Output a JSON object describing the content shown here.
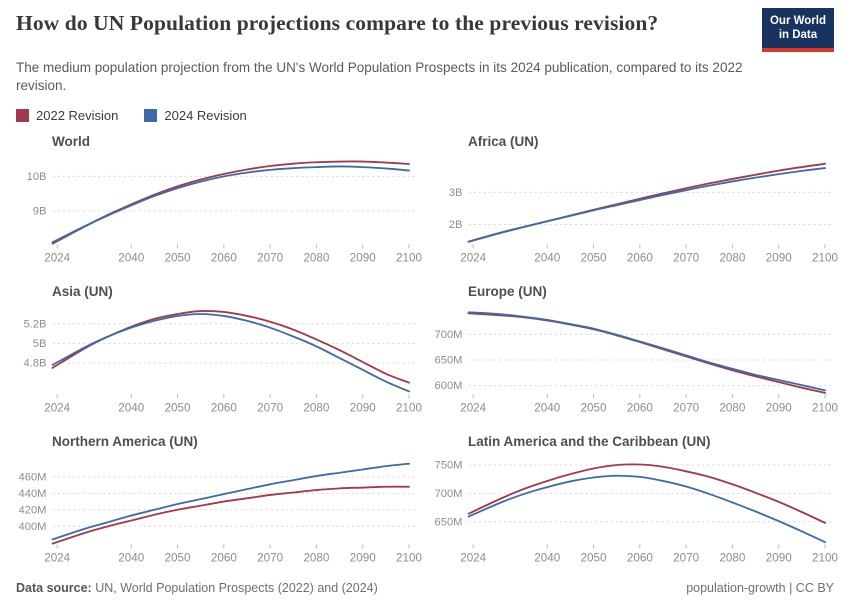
{
  "header": {
    "title": "How do UN Population projections compare to the previous revision?",
    "subtitle": "The medium population projection from the UN's World Population Prospects in its 2024 publication, compared to its 2022 revision.",
    "logo_line1": "Our World",
    "logo_line2": "in Data"
  },
  "legend": {
    "items": [
      {
        "label": "2022 Revision",
        "color": "#A2394C"
      },
      {
        "label": "2024 Revision",
        "color": "#3C6CA7"
      }
    ]
  },
  "footer": {
    "source_label": "Data source:",
    "source_text": "UN, World Population Prospects (2022) and (2024)",
    "slug": "population-growth",
    "divider": "|",
    "license": "CC BY"
  },
  "chart_data": [
    {
      "type": "line",
      "title": "World",
      "unit": "billion people",
      "x": [
        2023,
        2030,
        2035,
        2040,
        2045,
        2050,
        2055,
        2060,
        2065,
        2070,
        2075,
        2080,
        2085,
        2090,
        2095,
        2100
      ],
      "xlim": [
        2023,
        2101.5
      ],
      "xticks": [
        2024,
        2040,
        2050,
        2060,
        2070,
        2080,
        2090,
        2100
      ],
      "ylim": [
        8.03,
        10.56
      ],
      "yticks": [
        {
          "value": 9,
          "label": "9B"
        },
        {
          "value": 10,
          "label": "10B"
        }
      ],
      "series": [
        {
          "name": "2022 Revision",
          "values": [
            8.05,
            8.55,
            8.89,
            9.19,
            9.47,
            9.71,
            9.91,
            10.07,
            10.2,
            10.3,
            10.37,
            10.41,
            10.43,
            10.43,
            10.4,
            10.36
          ]
        },
        {
          "name": "2024 Revision",
          "values": [
            8.09,
            8.56,
            8.87,
            9.16,
            9.43,
            9.66,
            9.85,
            10.0,
            10.11,
            10.19,
            10.24,
            10.27,
            10.29,
            10.27,
            10.23,
            10.17
          ]
        }
      ]
    },
    {
      "type": "line",
      "title": "Africa (UN)",
      "unit": "billion people",
      "x": [
        2023,
        2030,
        2035,
        2040,
        2045,
        2050,
        2055,
        2060,
        2065,
        2070,
        2075,
        2080,
        2085,
        2090,
        2095,
        2100
      ],
      "xlim": [
        2023,
        2101.5
      ],
      "xticks": [
        2024,
        2040,
        2050,
        2060,
        2070,
        2080,
        2090,
        2100
      ],
      "ylim": [
        1.38,
        4.1
      ],
      "yticks": [
        {
          "value": 2,
          "label": "2B"
        },
        {
          "value": 3,
          "label": "3B"
        }
      ],
      "series": [
        {
          "name": "2022 Revision",
          "values": [
            1.46,
            1.74,
            1.92,
            2.1,
            2.28,
            2.46,
            2.63,
            2.8,
            2.97,
            3.13,
            3.28,
            3.42,
            3.55,
            3.68,
            3.79,
            3.89
          ]
        },
        {
          "name": "2024 Revision",
          "values": [
            1.47,
            1.75,
            1.93,
            2.1,
            2.27,
            2.44,
            2.6,
            2.76,
            2.92,
            3.07,
            3.21,
            3.34,
            3.46,
            3.57,
            3.67,
            3.76
          ]
        }
      ]
    },
    {
      "type": "line",
      "title": "Asia (UN)",
      "unit": "billion people",
      "x": [
        2023,
        2030,
        2035,
        2040,
        2045,
        2050,
        2055,
        2060,
        2065,
        2070,
        2075,
        2080,
        2085,
        2090,
        2095,
        2100
      ],
      "xlim": [
        2023,
        2101.5
      ],
      "xticks": [
        2024,
        2040,
        2050,
        2060,
        2070,
        2080,
        2090,
        2100
      ],
      "ylim": [
        4.48,
        5.37
      ],
      "yticks": [
        {
          "value": 4.8,
          "label": "4.8B"
        },
        {
          "value": 5.0,
          "label": "5B"
        },
        {
          "value": 5.2,
          "label": "5.2B"
        }
      ],
      "series": [
        {
          "name": "2022 Revision",
          "values": [
            4.75,
            4.95,
            5.07,
            5.17,
            5.25,
            5.3,
            5.33,
            5.32,
            5.28,
            5.22,
            5.14,
            5.04,
            4.93,
            4.81,
            4.69,
            4.6
          ]
        },
        {
          "name": "2024 Revision",
          "values": [
            4.78,
            4.96,
            5.07,
            5.16,
            5.23,
            5.28,
            5.3,
            5.28,
            5.23,
            5.16,
            5.07,
            4.97,
            4.85,
            4.73,
            4.61,
            4.51
          ]
        }
      ]
    },
    {
      "type": "line",
      "title": "Europe (UN)",
      "unit": "million people",
      "x": [
        2023,
        2030,
        2035,
        2040,
        2045,
        2050,
        2055,
        2060,
        2065,
        2070,
        2075,
        2080,
        2085,
        2090,
        2095,
        2100
      ],
      "xlim": [
        2023,
        2101.5
      ],
      "xticks": [
        2024,
        2040,
        2050,
        2060,
        2070,
        2080,
        2090,
        2100
      ],
      "ylim": [
        583,
        753
      ],
      "yticks": [
        {
          "value": 600,
          "label": "600M"
        },
        {
          "value": 650,
          "label": "650M"
        },
        {
          "value": 700,
          "label": "700M"
        }
      ],
      "series": [
        {
          "name": "2022 Revision",
          "values": [
            741,
            737,
            733,
            727,
            719,
            710,
            698,
            685,
            671,
            657,
            643,
            630,
            618,
            607,
            596,
            586
          ]
        },
        {
          "name": "2024 Revision",
          "values": [
            743,
            739,
            734,
            728,
            720,
            711,
            699,
            686,
            673,
            659,
            645,
            633,
            621,
            611,
            601,
            591
          ]
        }
      ]
    },
    {
      "type": "line",
      "title": "Northern America (UN)",
      "unit": "million people",
      "x": [
        2023,
        2030,
        2035,
        2040,
        2045,
        2050,
        2055,
        2060,
        2065,
        2070,
        2075,
        2080,
        2085,
        2090,
        2095,
        2100
      ],
      "xlim": [
        2023,
        2101.5
      ],
      "xticks": [
        2024,
        2040,
        2050,
        2060,
        2070,
        2080,
        2090,
        2100
      ],
      "ylim": [
        378,
        484
      ],
      "yticks": [
        {
          "value": 400,
          "label": "400M"
        },
        {
          "value": 420,
          "label": "420M"
        },
        {
          "value": 440,
          "label": "440M"
        },
        {
          "value": 460,
          "label": "460M"
        }
      ],
      "series": [
        {
          "name": "2022 Revision",
          "values": [
            379,
            392,
            400,
            407,
            414,
            420,
            425,
            430,
            434,
            438,
            441,
            444,
            446,
            447,
            448,
            448
          ]
        },
        {
          "name": "2024 Revision",
          "values": [
            384,
            397,
            405,
            413,
            420,
            427,
            433,
            439,
            445,
            451,
            456,
            461,
            465,
            469,
            473,
            476
          ]
        }
      ]
    },
    {
      "type": "line",
      "title": "Latin America and the Caribbean (UN)",
      "unit": "million people",
      "x": [
        2023,
        2030,
        2035,
        2040,
        2045,
        2050,
        2055,
        2060,
        2065,
        2070,
        2075,
        2080,
        2085,
        2090,
        2095,
        2100
      ],
      "xlim": [
        2023,
        2101.5
      ],
      "xticks": [
        2024,
        2040,
        2050,
        2060,
        2070,
        2080,
        2090,
        2100
      ],
      "ylim": [
        610,
        764
      ],
      "yticks": [
        {
          "value": 650,
          "label": "650M"
        },
        {
          "value": 700,
          "label": "700M"
        },
        {
          "value": 750,
          "label": "750M"
        }
      ],
      "series": [
        {
          "name": "2022 Revision",
          "values": [
            664,
            691,
            708,
            722,
            734,
            744,
            750,
            751,
            747,
            739,
            729,
            716,
            701,
            685,
            667,
            648
          ]
        },
        {
          "name": "2024 Revision",
          "values": [
            659,
            684,
            699,
            711,
            721,
            728,
            731,
            729,
            722,
            712,
            699,
            684,
            668,
            651,
            633,
            614
          ]
        }
      ]
    }
  ]
}
